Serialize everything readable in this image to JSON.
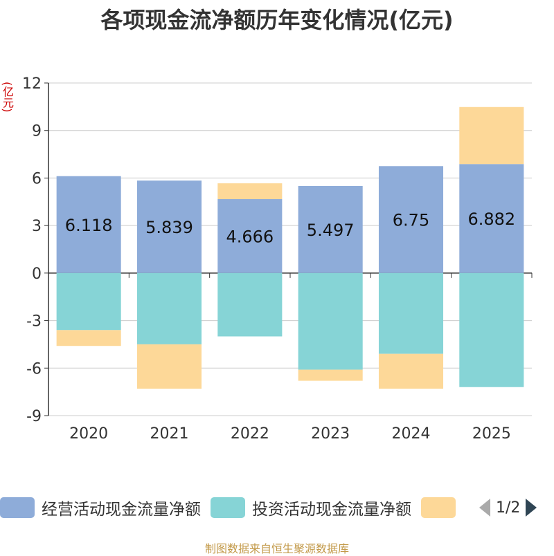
{
  "chart_data": {
    "type": "bar",
    "stacked": true,
    "title": "各项现金流净额历年变化情况(亿元)",
    "ylabel": "(亿元)",
    "ylim": [
      -9,
      12
    ],
    "yticks": [
      12,
      9,
      6,
      3,
      0,
      -3,
      -6,
      -9
    ],
    "categories": [
      "2020",
      "2021",
      "2022",
      "2023",
      "2024",
      "2025"
    ],
    "series": [
      {
        "name": "经营活动现金流量净额",
        "color": "#8eacd9",
        "values": [
          6.118,
          5.839,
          4.666,
          5.497,
          6.75,
          6.882
        ]
      },
      {
        "name": "投资活动现金流量净额",
        "color": "#86d4d6",
        "values": [
          -3.6,
          -4.5,
          -4.0,
          -6.1,
          -5.1,
          -7.2
        ]
      },
      {
        "name": "",
        "color": "#fdd898",
        "values": [
          -1.0,
          -2.8,
          1.0,
          -0.7,
          -2.2,
          3.6
        ]
      }
    ],
    "data_labels": [
      "6.118",
      "5.839",
      "4.666",
      "5.497",
      "6.75",
      "6.882"
    ],
    "legend_position": "bottom",
    "legend_page": "1/2"
  },
  "source": "制图数据来自恒生聚源数据库"
}
